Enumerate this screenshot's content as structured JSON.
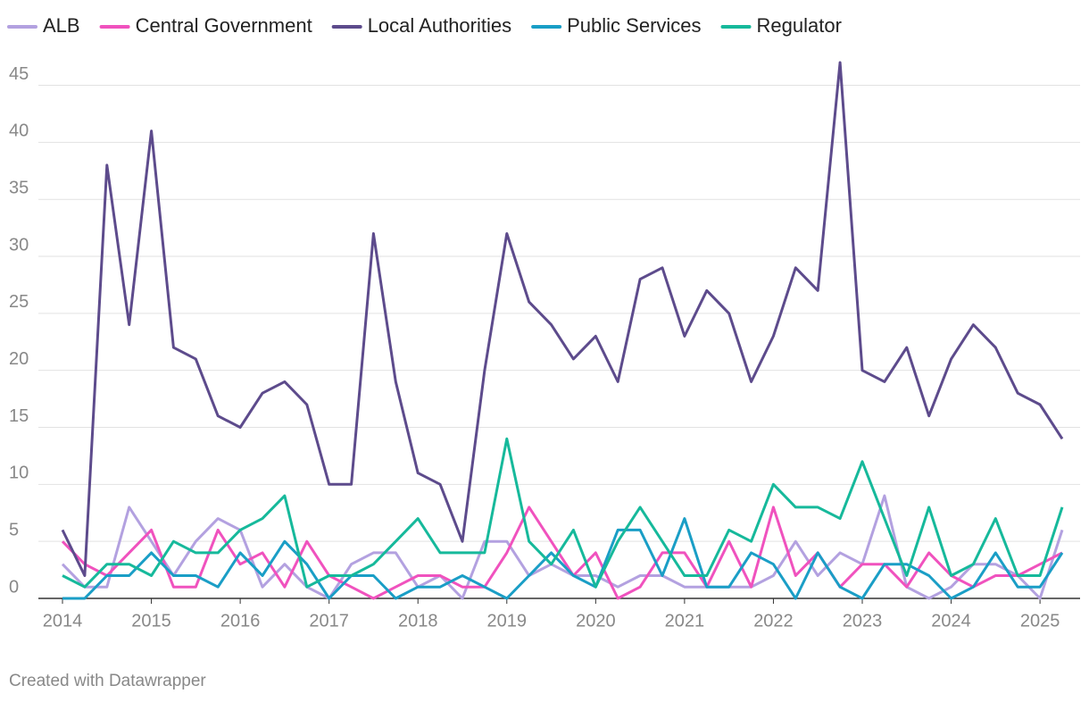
{
  "chart_data": {
    "type": "line",
    "x": [
      2014,
      2014.25,
      2014.5,
      2014.75,
      2015,
      2015.25,
      2015.5,
      2015.75,
      2016,
      2016.25,
      2016.5,
      2016.75,
      2017,
      2017.25,
      2017.5,
      2017.75,
      2018,
      2018.25,
      2018.5,
      2018.75,
      2019,
      2019.25,
      2019.5,
      2019.75,
      2020,
      2020.25,
      2020.5,
      2020.75,
      2021,
      2021.25,
      2021.5,
      2021.75,
      2022,
      2022.25,
      2022.5,
      2022.75,
      2023,
      2023.25,
      2023.5,
      2023.75,
      2024,
      2024.25,
      2024.5,
      2024.75,
      2025,
      2025.25
    ],
    "series": [
      {
        "name": "ALB",
        "color": "#b3a1e0",
        "values": [
          3,
          1,
          1,
          8,
          5,
          2,
          5,
          7,
          6,
          1,
          3,
          1,
          0,
          3,
          4,
          4,
          1,
          2,
          0,
          5,
          5,
          2,
          3,
          2,
          2,
          1,
          2,
          2,
          1,
          1,
          1,
          1,
          2,
          5,
          2,
          4,
          3,
          9,
          1,
          0,
          1,
          3,
          3,
          2,
          0,
          6
        ]
      },
      {
        "name": "Central Government",
        "color": "#f052be",
        "values": [
          5,
          3,
          2,
          4,
          6,
          1,
          1,
          6,
          3,
          4,
          1,
          5,
          2,
          1,
          0,
          1,
          2,
          2,
          1,
          1,
          4,
          8,
          5,
          2,
          4,
          0,
          1,
          4,
          4,
          1,
          5,
          1,
          8,
          2,
          4,
          1,
          3,
          3,
          1,
          4,
          2,
          1,
          2,
          2,
          3,
          4
        ]
      },
      {
        "name": "Local Authorities",
        "color": "#5d4b8c",
        "values": [
          6,
          2,
          38,
          24,
          41,
          22,
          21,
          16,
          15,
          18,
          19,
          17,
          10,
          10,
          32,
          19,
          11,
          10,
          5,
          20,
          32,
          26,
          24,
          21,
          23,
          19,
          28,
          29,
          23,
          27,
          25,
          19,
          23,
          29,
          27,
          47,
          20,
          19,
          22,
          16,
          21,
          24,
          22,
          18,
          17,
          14
        ]
      },
      {
        "name": "Public Services",
        "color": "#1a9ec6",
        "values": [
          0,
          0,
          2,
          2,
          4,
          2,
          2,
          1,
          4,
          2,
          5,
          3,
          0,
          2,
          2,
          0,
          1,
          1,
          2,
          1,
          0,
          2,
          4,
          2,
          1,
          6,
          6,
          2,
          7,
          1,
          1,
          4,
          3,
          0,
          4,
          1,
          0,
          3,
          3,
          2,
          0,
          1,
          4,
          1,
          1,
          4
        ]
      },
      {
        "name": "Regulator",
        "color": "#16b99b",
        "values": [
          2,
          1,
          3,
          3,
          2,
          5,
          4,
          4,
          6,
          7,
          9,
          1,
          2,
          2,
          3,
          5,
          7,
          4,
          4,
          4,
          14,
          5,
          3,
          6,
          1,
          5,
          8,
          5,
          2,
          2,
          6,
          5,
          10,
          8,
          8,
          7,
          12,
          7,
          2,
          8,
          2,
          3,
          7,
          2,
          2,
          8
        ]
      }
    ],
    "xlim": [
      2014,
      2025.25
    ],
    "xticks": [
      2014,
      2015,
      2016,
      2017,
      2018,
      2019,
      2020,
      2021,
      2022,
      2023,
      2024,
      2025
    ],
    "ylim": [
      0,
      47
    ],
    "yticks": [
      0,
      5,
      10,
      15,
      20,
      25,
      30,
      35,
      40,
      45
    ],
    "grid": true,
    "legend": "top",
    "footer": "Created with Datawrapper"
  }
}
